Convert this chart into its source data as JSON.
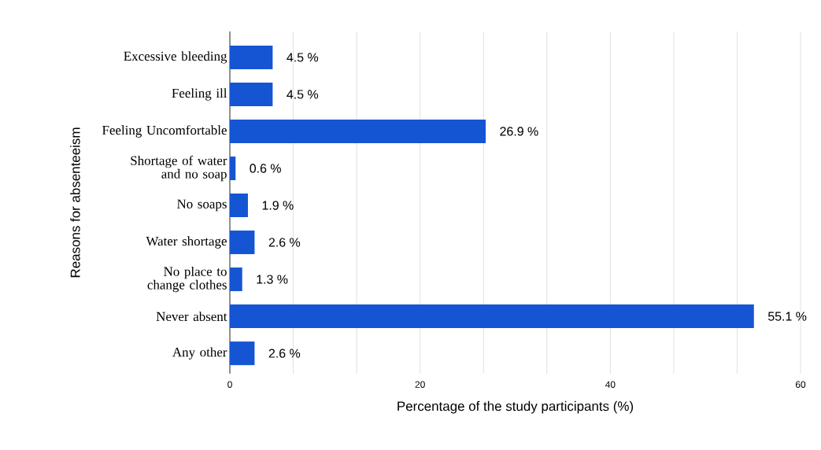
{
  "chart_data": {
    "type": "bar",
    "orientation": "horizontal",
    "xlabel": "Percentage of the study participants (%)",
    "ylabel": "Reasons for absenteeism",
    "categories": [
      "Excessive bleeding",
      "Feeling ill",
      "Feeling Uncomfortable",
      "Shortage of water and no soap",
      "No soaps",
      "Water shortage",
      "No place to change clothes",
      "Never absent",
      "Any other"
    ],
    "values": [
      4.5,
      4.5,
      26.9,
      0.6,
      1.9,
      2.6,
      1.3,
      55.1,
      2.6
    ],
    "value_labels": [
      "4.5 %",
      "4.5 %",
      "26.9 %",
      "0.6 %",
      "1.9 %",
      "2.6 %",
      "1.3 %",
      "55.1 %",
      "2.6 %"
    ],
    "color": "#1555d4",
    "xlim": [
      0,
      60
    ],
    "xticks": [
      0,
      {
        "value": 6.67,
        "label": null
      },
      {
        "value": 13.33,
        "label": null
      },
      20,
      {
        "value": 26.67,
        "label": null
      },
      {
        "value": 33.33,
        "label": null
      },
      40,
      {
        "value": 46.67,
        "label": null
      },
      {
        "value": 53.33,
        "label": null
      },
      60
    ],
    "grid": "x"
  }
}
